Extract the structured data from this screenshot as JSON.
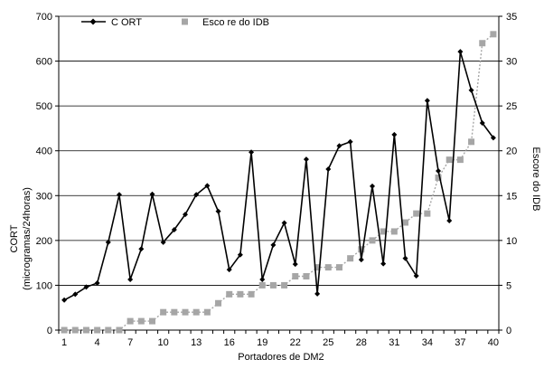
{
  "chart_data": {
    "type": "line",
    "x": [
      1,
      2,
      3,
      4,
      5,
      6,
      7,
      8,
      9,
      10,
      11,
      12,
      13,
      14,
      15,
      16,
      17,
      18,
      19,
      20,
      21,
      22,
      23,
      24,
      25,
      26,
      27,
      28,
      29,
      30,
      31,
      32,
      33,
      34,
      35,
      36,
      37,
      38,
      39,
      40
    ],
    "x_tick_labels": [
      "1",
      "4",
      "7",
      "10",
      "13",
      "16",
      "19",
      "22",
      "25",
      "28",
      "31",
      "34",
      "37",
      "40"
    ],
    "xlabel": "Portadores de DM2",
    "ylabel_left": "CORT",
    "ylabel_left_unit": "(microgramas/24horas)",
    "ylabel_right": "Escore do IDB",
    "ylim_left": [
      0,
      700
    ],
    "yticks_left": [
      "0",
      "100",
      "200",
      "300",
      "400",
      "500",
      "600",
      "700"
    ],
    "ylim_right": [
      0,
      35
    ],
    "yticks_right": [
      "0",
      "5",
      "10",
      "15",
      "20",
      "25",
      "30",
      "35"
    ],
    "grid": "horizontal",
    "legend_position": "top-left",
    "series": [
      {
        "name": "C ORT",
        "axis": "left",
        "style": "solid line with diamond markers",
        "color": "#000000",
        "values": [
          67,
          80,
          96,
          105,
          196,
          302,
          113,
          181,
          303,
          196,
          224,
          258,
          302,
          322,
          265,
          135,
          168,
          397,
          113,
          190,
          239,
          147,
          381,
          81,
          359,
          411,
          420,
          157,
          321,
          148,
          436,
          160,
          121,
          512,
          355,
          244,
          621,
          535,
          462,
          429
        ]
      },
      {
        "name": "Esco re do IDB",
        "axis": "right",
        "style": "dotted line with square markers",
        "color": "#a6a6a6",
        "values": [
          0,
          0,
          0,
          0,
          0,
          0,
          1,
          1,
          1,
          2,
          2,
          2,
          2,
          2,
          3,
          4,
          4,
          4,
          5,
          5,
          5,
          6,
          6,
          7,
          7,
          7,
          8,
          9,
          10,
          11,
          11,
          12,
          13,
          13,
          17,
          19,
          19,
          21,
          32,
          33
        ]
      }
    ]
  }
}
